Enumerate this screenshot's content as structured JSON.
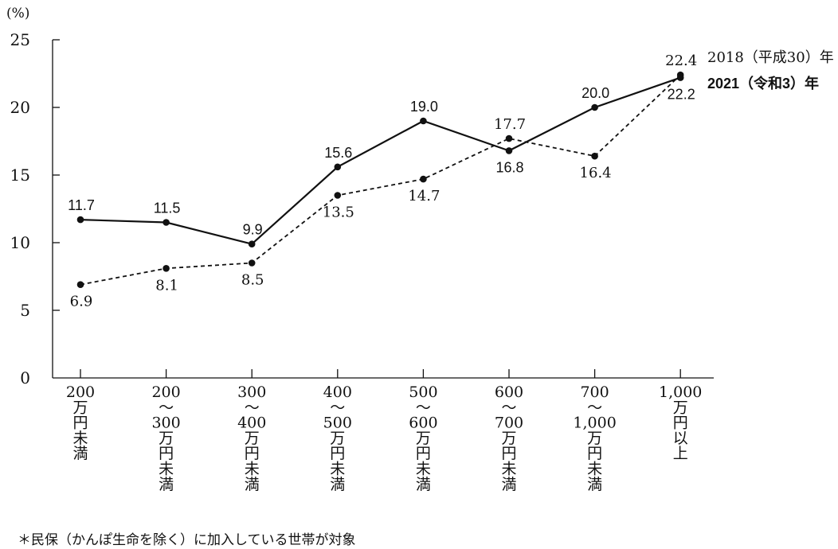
{
  "chart_data": {
    "type": "line",
    "y_unit": "(%)",
    "ylim": [
      0,
      25
    ],
    "y_ticks": [
      "0",
      "5",
      "10",
      "15",
      "20",
      "25"
    ],
    "categories": [
      [
        "200",
        "万",
        "円",
        "未",
        "満"
      ],
      [
        "200",
        "～",
        "300",
        "万",
        "円",
        "未",
        "満"
      ],
      [
        "300",
        "～",
        "400",
        "万",
        "円",
        "未",
        "満"
      ],
      [
        "400",
        "～",
        "500",
        "万",
        "円",
        "未",
        "満"
      ],
      [
        "500",
        "～",
        "600",
        "万",
        "円",
        "未",
        "満"
      ],
      [
        "600",
        "～",
        "700",
        "万",
        "円",
        "未",
        "満"
      ],
      [
        "700",
        "～",
        "1,000",
        "万",
        "円",
        "未",
        "満"
      ],
      [
        "1,000",
        "万",
        "円",
        "以",
        "上"
      ]
    ],
    "series": [
      {
        "name": "2018（平成30）年",
        "style": "dashed",
        "values": [
          6.9,
          8.1,
          8.5,
          13.5,
          14.7,
          17.7,
          16.4,
          22.4
        ],
        "labels": [
          "6.9",
          "8.1",
          "8.5",
          "13.5",
          "14.7",
          "17.7",
          "16.4",
          "22.4"
        ]
      },
      {
        "name": "2021（令和3）年",
        "style": "solid",
        "values": [
          11.7,
          11.5,
          9.9,
          15.6,
          19.0,
          16.8,
          20.0,
          22.2
        ],
        "labels": [
          "11.7",
          "11.5",
          "9.9",
          "15.6",
          "19.0",
          "16.8",
          "20.0",
          "22.2"
        ]
      }
    ],
    "grid": false,
    "legend": "right"
  },
  "footnote": "＊民保（かんぽ生命を除く）に加入している世帯が対象",
  "colors": {
    "line": "#111111",
    "background": "#ffffff"
  }
}
